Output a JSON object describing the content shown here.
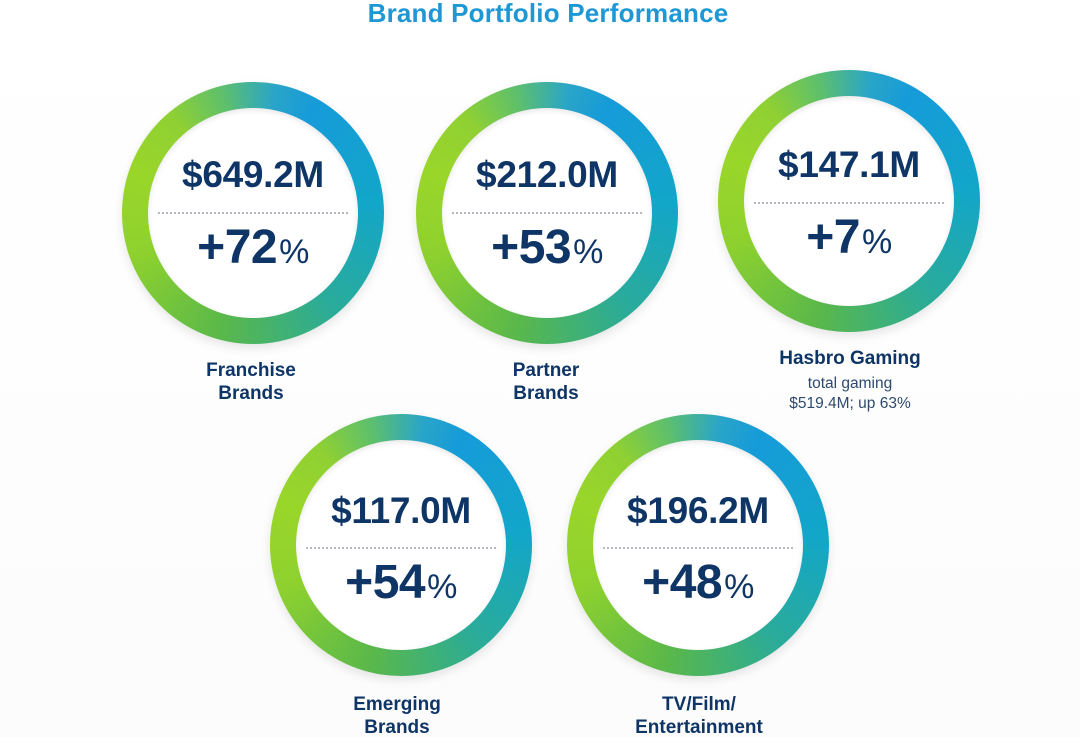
{
  "title": "Brand Portfolio Performance",
  "colors": {
    "title": "#1d98d4",
    "text_navy": "#0e3566",
    "ring_blue": "#169bd9",
    "ring_green": "#8ed12e"
  },
  "brands": [
    {
      "amount": "$649.2M",
      "growth": "+72",
      "pct": "%",
      "label_line1": "Franchise",
      "label_line2": "Brands"
    },
    {
      "amount": "$212.0M",
      "growth": "+53",
      "pct": "%",
      "label_line1": "Partner",
      "label_line2": "Brands"
    },
    {
      "amount": "$147.1M",
      "growth": "+7",
      "pct": "%",
      "label_line1": "Hasbro Gaming",
      "sub_line1": "total gaming",
      "sub_line2": "$519.4M; up 63%"
    },
    {
      "amount": "$117.0M",
      "growth": "+54",
      "pct": "%",
      "label_line1": "Emerging",
      "label_line2": "Brands"
    },
    {
      "amount": "$196.2M",
      "growth": "+48",
      "pct": "%",
      "label_line1": "TV/Film/",
      "label_line2": "Entertainment"
    }
  ]
}
